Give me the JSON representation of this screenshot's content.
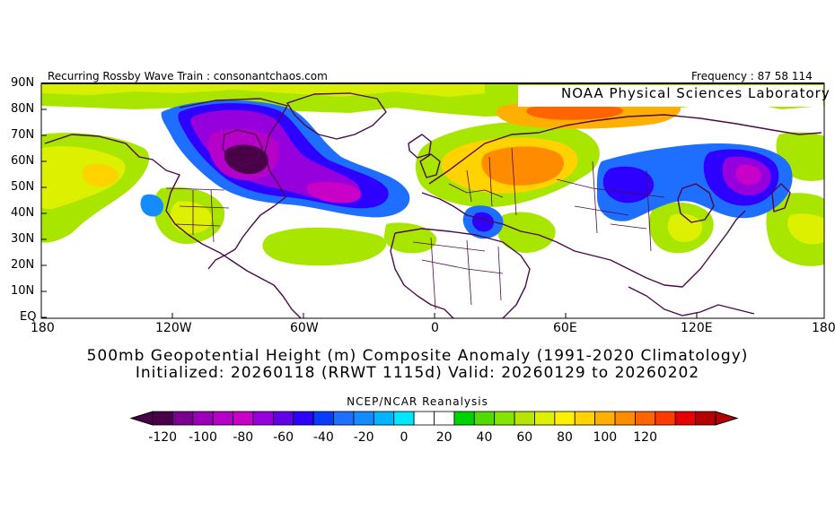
{
  "header": {
    "left_caption": "Recurring Rossby Wave Train : consonantchaos.com",
    "right_caption": "Frequency : 87 58 114",
    "lab_label": "NOAA Physical Sciences Laboratory"
  },
  "map": {
    "lat_ticks": [
      "90N",
      "80N",
      "70N",
      "60N",
      "50N",
      "40N",
      "30N",
      "20N",
      "10N",
      "EQ"
    ],
    "lon_ticks": [
      "180",
      "120W",
      "60W",
      "0",
      "60E",
      "120E",
      "180"
    ],
    "anomalies": [
      {
        "region": "Hudson Bay / Labrador",
        "sign": "negative",
        "peak_m": -120
      },
      {
        "region": "North Atlantic",
        "sign": "negative",
        "peak_m": -100
      },
      {
        "region": "Okhotsk / Kamchatka",
        "sign": "negative",
        "peak_m": -80
      },
      {
        "region": "Central Asia",
        "sign": "negative",
        "peak_m": -50
      },
      {
        "region": "Eastern Mediterranean",
        "sign": "negative",
        "peak_m": -50
      },
      {
        "region": "Western Russia",
        "sign": "positive",
        "peak_m": 90
      },
      {
        "region": "Northern Siberia",
        "sign": "positive",
        "peak_m": 70
      },
      {
        "region": "Gulf of Alaska",
        "sign": "positive",
        "peak_m": 50
      }
    ]
  },
  "titles": {
    "line1": "500mb Geopotential Height (m) Composite Anomaly (1991-2020 Climatology)",
    "line2": "Initialized: 20260118 (RRWT 1115d) Valid: 20260129 to 20260202",
    "source": "NCEP/NCAR Reanalysis"
  },
  "colorbar": {
    "labels": [
      "-120",
      "-100",
      "-80",
      "-60",
      "-40",
      "-20",
      "0",
      "20",
      "40",
      "60",
      "80",
      "100",
      "120"
    ],
    "colors": [
      "#4a0049",
      "#7b0090",
      "#9b00b8",
      "#b400c8",
      "#c800c8",
      "#9600dc",
      "#6400e6",
      "#2d00ff",
      "#0a3cff",
      "#1e6eff",
      "#148cff",
      "#00b4ff",
      "#00e6ff",
      "#ffffff",
      "#ffffff",
      "#00d200",
      "#50dc00",
      "#82e600",
      "#b4e600",
      "#dcf000",
      "#fff000",
      "#ffd200",
      "#ffaf00",
      "#ff8c00",
      "#ff6400",
      "#ff3c00",
      "#e60000",
      "#b40000"
    ]
  }
}
